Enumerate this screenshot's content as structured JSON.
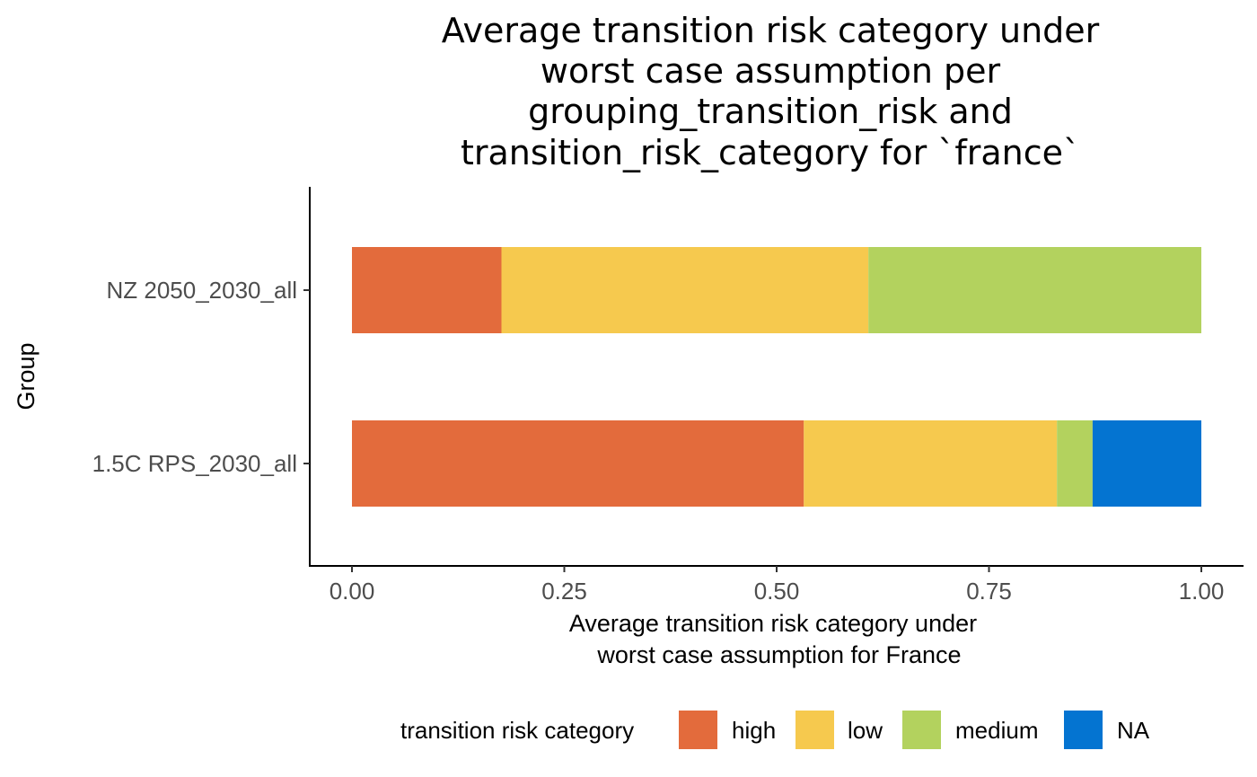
{
  "chart_data": {
    "type": "bar",
    "orientation": "horizontal",
    "stacked": true,
    "title_lines": [
      "Average transition risk category under",
      "worst case assumption per",
      "grouping_transition_risk and",
      "transition_risk_category for `france`"
    ],
    "xlabel_lines": [
      "Average transition risk category under",
      "worst case assumption for France"
    ],
    "ylabel": "Group",
    "xlim": [
      0,
      1
    ],
    "x_ticks": [
      "0.00",
      "0.25",
      "0.50",
      "0.75",
      "1.00"
    ],
    "x_tick_values": [
      0,
      0.25,
      0.5,
      0.75,
      1.0
    ],
    "categories": [
      "NZ 2050_2030_all",
      "1.5C RPS_2030_all"
    ],
    "series": [
      {
        "name": "high",
        "color": "#E36B3C",
        "values": [
          0.176,
          0.532
        ]
      },
      {
        "name": "low",
        "color": "#F6C94E",
        "values": [
          0.432,
          0.298
        ]
      },
      {
        "name": "medium",
        "color": "#B3D25E",
        "values": [
          0.392,
          0.042
        ]
      },
      {
        "name": "NA",
        "color": "#0474D1",
        "values": [
          0.0,
          0.128
        ]
      }
    ],
    "legend": {
      "title": "transition risk category",
      "position": "bottom"
    },
    "grid": false
  }
}
